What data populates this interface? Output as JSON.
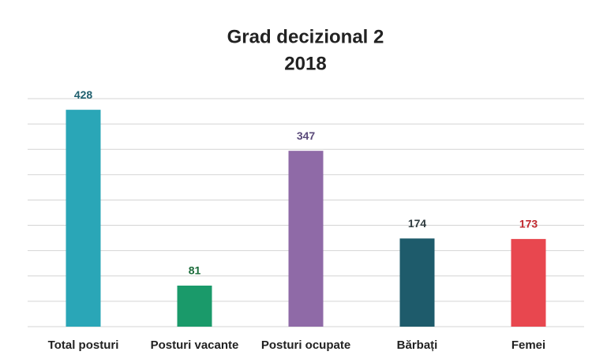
{
  "chart_data": {
    "type": "bar",
    "title": "Grad decizional 2",
    "subtitle": "2018",
    "categories": [
      "Total posturi",
      "Posturi vacante",
      "Posturi ocupate",
      "Bărbați",
      "Femei"
    ],
    "values": [
      428,
      81,
      347,
      174,
      173
    ],
    "colors": [
      "#2aa6b7",
      "#1a9a6a",
      "#8f6aa7",
      "#1e5b6b",
      "#e8474f"
    ],
    "label_colors": [
      "#1f5f6e",
      "#1b6b3a",
      "#5a4a7a",
      "#2f3b3f",
      "#c0282e"
    ],
    "ylim": [
      0,
      450
    ],
    "yticks": [
      0,
      50,
      100,
      150,
      200,
      250,
      300,
      350,
      400,
      450
    ],
    "grid": true
  }
}
